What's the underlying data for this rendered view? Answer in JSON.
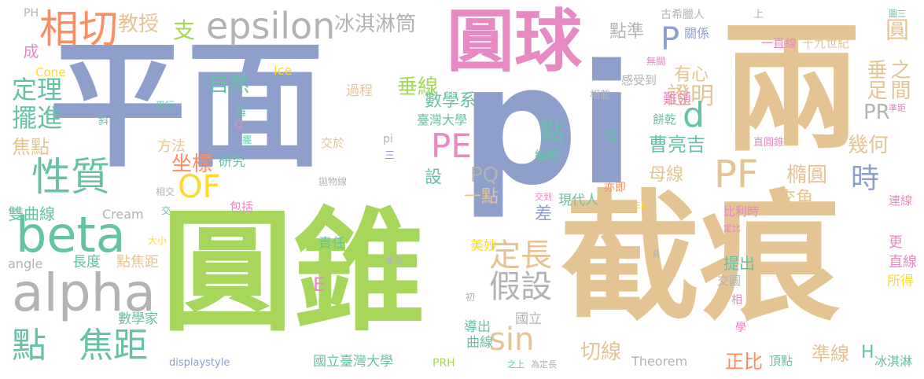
{
  "palette": {
    "blue": "#8d9fca",
    "green": "#a6d75b",
    "tan": "#e5c493",
    "pink": "#e78ac3",
    "teal": "#66c2a5",
    "orange": "#fc8d62",
    "gray": "#b3b3b3",
    "yellow": "#ffd92f"
  },
  "words": [
    {
      "text": "平面",
      "color": "blue"
    },
    {
      "text": "圓錐",
      "color": "green"
    },
    {
      "text": "截痕",
      "color": "tan"
    },
    {
      "text": "pi",
      "color": "blue"
    },
    {
      "text": "圓球",
      "color": "pink"
    },
    {
      "text": "兩",
      "color": "tan"
    },
    {
      "text": "相切",
      "color": "orange"
    },
    {
      "text": "教授",
      "color": "tan"
    },
    {
      "text": "支",
      "color": "green"
    },
    {
      "text": "epsilon",
      "color": "gray"
    },
    {
      "text": "冰淇淋筒",
      "color": "gray"
    },
    {
      "text": "點準",
      "color": "gray"
    },
    {
      "text": "P",
      "color": "blue"
    },
    {
      "text": "關係",
      "color": "blue"
    },
    {
      "text": "古希臘人",
      "color": "gray"
    },
    {
      "text": "圓",
      "color": "tan"
    },
    {
      "text": "十九世紀",
      "color": "tan"
    },
    {
      "text": "一直線",
      "color": "pink"
    },
    {
      "text": "PH",
      "color": "gray"
    },
    {
      "text": "成",
      "color": "pink"
    },
    {
      "text": "Cone",
      "color": "yellow"
    },
    {
      "text": "定理",
      "color": "teal"
    },
    {
      "text": "擺進",
      "color": "teal"
    },
    {
      "text": "焦點",
      "color": "tan"
    },
    {
      "text": "性質",
      "color": "teal"
    },
    {
      "text": "beta",
      "color": "teal"
    },
    {
      "text": "alpha",
      "color": "gray"
    },
    {
      "text": "點",
      "color": "teal"
    },
    {
      "text": "焦距",
      "color": "teal"
    },
    {
      "text": "自然",
      "color": "teal"
    },
    {
      "text": "數學系",
      "color": "teal"
    },
    {
      "text": "垂線",
      "color": "green"
    },
    {
      "text": "過程",
      "color": "tan"
    },
    {
      "text": "Ice",
      "color": "yellow"
    },
    {
      "text": "平行",
      "color": "teal"
    },
    {
      "text": "方法",
      "color": "tan"
    },
    {
      "text": "坐標",
      "color": "orange"
    },
    {
      "text": "研究",
      "color": "teal"
    },
    {
      "text": "OF",
      "color": "yellow"
    },
    {
      "text": "PE",
      "color": "pink"
    },
    {
      "text": "臺灣大學",
      "color": "teal"
    },
    {
      "text": "點",
      "color": "teal"
    },
    {
      "text": "PQ",
      "color": "gray"
    },
    {
      "text": "一點",
      "color": "tan"
    },
    {
      "text": "設",
      "color": "teal"
    },
    {
      "text": "定長",
      "color": "tan"
    },
    {
      "text": "假設",
      "color": "gray"
    },
    {
      "text": "sin",
      "color": "tan"
    },
    {
      "text": "切線",
      "color": "tan"
    },
    {
      "text": "有心",
      "color": "tan"
    },
    {
      "text": "證明",
      "color": "tan"
    },
    {
      "text": "d",
      "color": "teal"
    },
    {
      "text": "曹亮吉",
      "color": "teal"
    },
    {
      "text": "PF",
      "color": "tan"
    },
    {
      "text": "母線",
      "color": "tan"
    },
    {
      "text": "橢圓",
      "color": "tan"
    },
    {
      "text": "時",
      "color": "blue"
    },
    {
      "text": "交角",
      "color": "tan"
    },
    {
      "text": "垂足",
      "color": "tan"
    },
    {
      "text": "之間",
      "color": "tan"
    },
    {
      "text": "PR",
      "color": "gray"
    },
    {
      "text": "幾何",
      "color": "tan"
    },
    {
      "text": "無關",
      "color": "pink"
    },
    {
      "text": "感受到",
      "color": "gray"
    },
    {
      "text": "難領",
      "color": "pink"
    },
    {
      "text": "餅乾",
      "color": "teal"
    },
    {
      "text": "直圓錐",
      "color": "pink"
    },
    {
      "text": "雙曲線",
      "color": "teal"
    },
    {
      "text": "Cream",
      "color": "gray"
    },
    {
      "text": "包括",
      "color": "pink"
    },
    {
      "text": "長度",
      "color": "teal"
    },
    {
      "text": "點焦距",
      "color": "tan"
    },
    {
      "text": "angle",
      "color": "gray"
    },
    {
      "text": "E",
      "color": "pink"
    },
    {
      "text": "責任",
      "color": "teal"
    },
    {
      "text": "美妙",
      "color": "yellow"
    },
    {
      "text": "差",
      "color": "blue"
    },
    {
      "text": "現代人",
      "color": "teal"
    },
    {
      "text": "數學家",
      "color": "teal"
    },
    {
      "text": "displaystyle",
      "color": "blue"
    },
    {
      "text": "國立臺灣大學",
      "color": "teal"
    },
    {
      "text": "PRH",
      "color": "green"
    },
    {
      "text": "導出",
      "color": "teal"
    },
    {
      "text": "曲線",
      "color": "teal"
    },
    {
      "text": "國立",
      "color": "gray"
    },
    {
      "text": "Theorem",
      "color": "gray"
    },
    {
      "text": "正比",
      "color": "orange"
    },
    {
      "text": "頂點",
      "color": "teal"
    },
    {
      "text": "準線",
      "color": "tan"
    },
    {
      "text": "H",
      "color": "teal"
    },
    {
      "text": "冰淇淋",
      "color": "teal"
    },
    {
      "text": "比利時",
      "color": "pink"
    },
    {
      "text": "提出",
      "color": "teal"
    },
    {
      "text": "交圓",
      "color": "gray"
    },
    {
      "text": "更",
      "color": "pink"
    },
    {
      "text": "直線",
      "color": "pink"
    },
    {
      "text": "所得",
      "color": "yellow"
    },
    {
      "text": "連線",
      "color": "pink"
    },
    {
      "text": "斜",
      "color": "teal"
    },
    {
      "text": "相交",
      "color": "gray"
    },
    {
      "text": "交",
      "color": "teal"
    },
    {
      "text": "擺",
      "color": "teal"
    },
    {
      "text": "Q",
      "color": "pink"
    },
    {
      "text": "難",
      "color": "teal"
    },
    {
      "text": "拋物線",
      "color": "gray"
    },
    {
      "text": "交於",
      "color": "tan"
    },
    {
      "text": "pi",
      "color": "gray"
    },
    {
      "text": "三",
      "color": "blue"
    },
    {
      "text": "編輯",
      "color": "teal"
    },
    {
      "text": "位",
      "color": "teal"
    },
    {
      "text": "亦即",
      "color": "orange"
    },
    {
      "text": "交到",
      "color": "pink"
    },
    {
      "text": "差為",
      "color": "gray"
    },
    {
      "text": "EE",
      "color": "yellow"
    },
    {
      "text": "R",
      "color": "gray"
    },
    {
      "text": "大小",
      "color": "yellow"
    },
    {
      "text": "初",
      "color": "gray"
    },
    {
      "text": "之上",
      "color": "teal"
    },
    {
      "text": "為定長",
      "color": "gray"
    },
    {
      "text": "學",
      "color": "pink"
    },
    {
      "text": "相",
      "color": "pink"
    },
    {
      "text": "相載",
      "color": "gray"
    },
    {
      "text": "定比",
      "color": "pink"
    },
    {
      "text": "準距",
      "color": "pink"
    },
    {
      "text": "圖三",
      "color": "teal"
    },
    {
      "text": "上",
      "color": "gray"
    }
  ]
}
